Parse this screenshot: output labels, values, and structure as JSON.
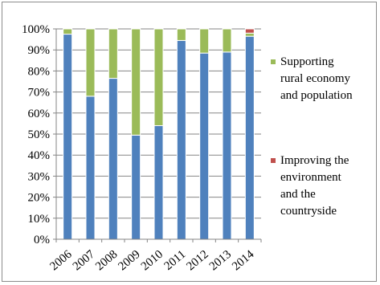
{
  "chart_data": {
    "type": "bar",
    "stacked": true,
    "percent": true,
    "categories": [
      "2006",
      "2007",
      "2008",
      "2009",
      "2010",
      "2011",
      "2012",
      "2013",
      "2014"
    ],
    "ylim": [
      0,
      100
    ],
    "yticks": [
      "0%",
      "10%",
      "20%",
      "30%",
      "40%",
      "50%",
      "60%",
      "70%",
      "80%",
      "90%",
      "100%"
    ],
    "grid": true,
    "legend_position": "right",
    "series": [
      {
        "values": [
          97.5,
          68,
          76.5,
          49.5,
          54,
          94.5,
          88.5,
          89,
          96.5
        ],
        "color": "#4f81bd"
      },
      {
        "name": "Supporting rural economy and population",
        "values": [
          2.5,
          32,
          23.5,
          50.5,
          46,
          5.5,
          11.5,
          11,
          1.5
        ],
        "color": "#9bbb59"
      },
      {
        "name": "Improving the environment and the countryside",
        "values": [
          0,
          0,
          0,
          0,
          0,
          0,
          0,
          0,
          2
        ],
        "color": "#c0504d"
      }
    ],
    "legend": [
      {
        "series_index": 1,
        "lines": [
          "Supporting",
          "rural economy",
          "and population"
        ]
      },
      {
        "series_index": 2,
        "lines": [
          "Improving the",
          "environment",
          "and the",
          "countryside"
        ]
      }
    ]
  }
}
